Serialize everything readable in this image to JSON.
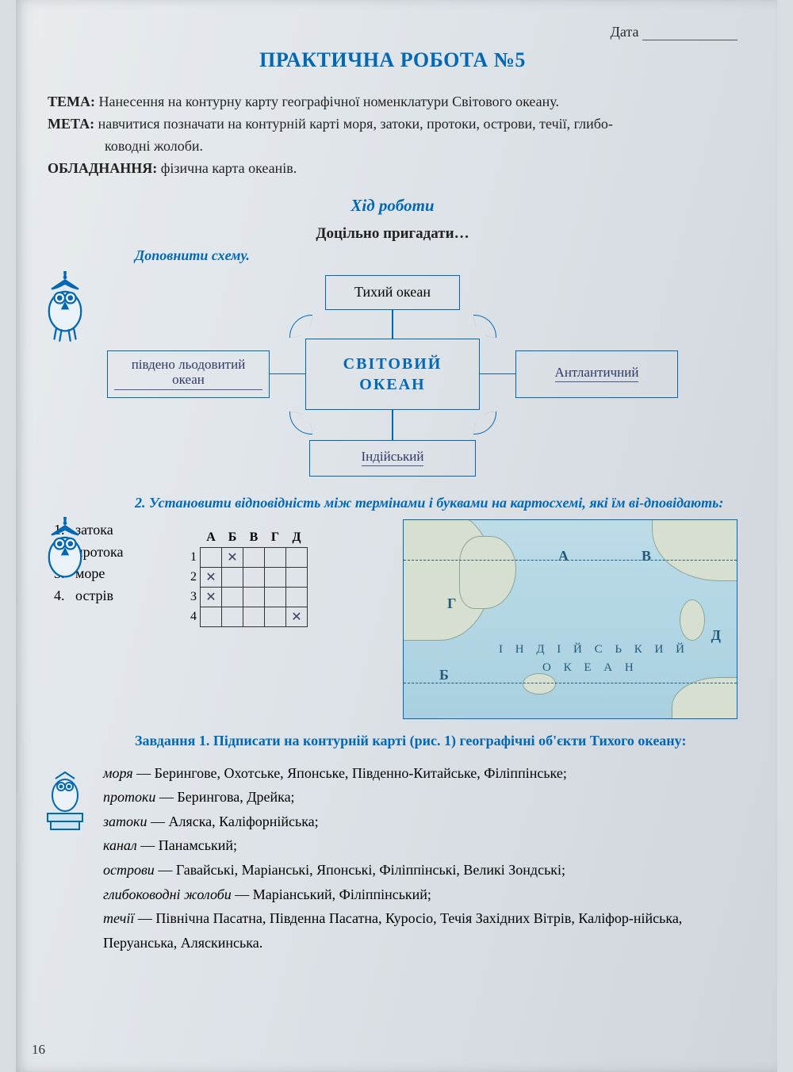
{
  "date_label": "Дата",
  "title": "ПРАКТИЧНА РОБОТА №5",
  "tema_label": "ТЕМА:",
  "tema_text": "Нанесення на контурну карту географічної номенклатури Світового океану.",
  "meta_label": "МЕТА:",
  "meta_text": "навчитися позначати на контурній карті моря, затоки, протоки, острови, течії, глибо-",
  "meta_text2": "ководні жолоби.",
  "obl_label": "ОБЛАДНАННЯ:",
  "obl_text": "фізична карта океанів.",
  "progress_heading": "Хід роботи",
  "recall_heading": "Доцільно пригадати…",
  "scheme_instr": "Доповнити схему.",
  "diagram": {
    "center_line1": "СВІТОВИЙ",
    "center_line2": "ОКЕАН",
    "top": "Тихий океан",
    "left_handwritten": "південо льодовитий океан",
    "right_handwritten": "Антлантичний",
    "bottom_handwritten": "Індійський"
  },
  "task2_instr": "2. Установити відповідність між термінами і буквами на картосхемі, які їм ві-дповідають:",
  "terms": [
    {
      "n": "1.",
      "t": "затока"
    },
    {
      "n": "2.",
      "t": "протока"
    },
    {
      "n": "3.",
      "t": "море"
    },
    {
      "n": "4.",
      "t": "острів"
    }
  ],
  "grid_cols": [
    "А",
    "Б",
    "В",
    "Г",
    "Д"
  ],
  "grid_rows": [
    "1",
    "2",
    "3",
    "4"
  ],
  "grid_marks": [
    [
      0,
      1,
      0,
      0,
      0
    ],
    [
      1,
      0,
      0,
      0,
      0
    ],
    [
      1,
      0,
      0,
      0,
      0
    ],
    [
      0,
      0,
      0,
      0,
      1
    ]
  ],
  "map_ocean_line1": "І Н Д І Й С Ь К И Й",
  "map_ocean_line2": "О К Е А Н",
  "map_labels": {
    "A": "А",
    "B": "В",
    "G": "Г",
    "Bb": "Б",
    "D": "Д"
  },
  "task1_head": "Завдання 1. Підписати на контурній карті (рис. 1) географічні об'єкти Тихого океану:",
  "list": [
    {
      "it": "моря",
      "rest": " — Берингове, Охотське, Японське, Південно-Китайське, Філіппінське;"
    },
    {
      "it": "протоки",
      "rest": " — Берингова, Дрейка;"
    },
    {
      "it": "затоки",
      "rest": " — Аляска, Каліфорнійська;"
    },
    {
      "it": "канал",
      "rest": " — Панамський;"
    },
    {
      "it": "острови",
      "rest": " — Гавайські, Маріанські, Японські, Філіппінські, Великі Зондські;"
    },
    {
      "it": "глибоководні жолоби",
      "rest": " — Маріанський, Філіппінський;"
    },
    {
      "it": "течії",
      "rest": " — Північна Пасатна, Південна Пасатна, Куросіо, Течія Західних Вітрів, Каліфор-нійська, Перуанська, Аляскинська."
    }
  ],
  "page_number": "16",
  "colors": {
    "accent": "#0068b5",
    "text": "#222222",
    "hand": "#2f3a66"
  }
}
